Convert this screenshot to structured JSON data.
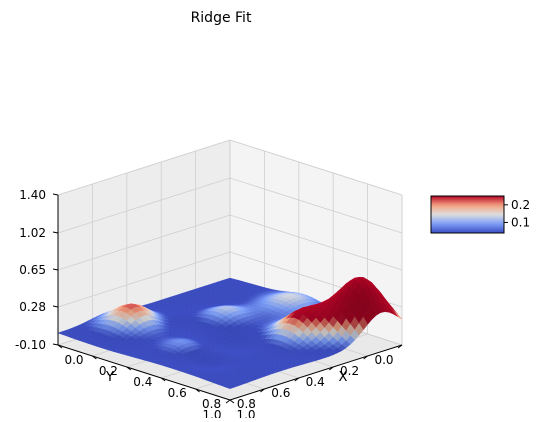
{
  "chart_data": {
    "type": "surface",
    "title": "Ridge Fit",
    "x_axis": {
      "label": "X",
      "range": [
        0,
        1
      ],
      "ticks": [
        "0.0",
        "0.2",
        "0.4",
        "0.6",
        "0.8",
        "1.0"
      ]
    },
    "y_axis": {
      "label": "Y",
      "range": [
        0,
        1
      ],
      "ticks": [
        "0.0",
        "0.2",
        "0.4",
        "0.6",
        "0.8",
        "1.0"
      ]
    },
    "z_axis": {
      "label": "",
      "range": [
        -0.1,
        1.4
      ],
      "ticks": [
        "-0.10",
        "0.28",
        "0.65",
        "1.02",
        "1.40"
      ]
    },
    "colorbar": {
      "colormap": "coolwarm",
      "range": [
        0.04,
        0.25
      ],
      "ticks": [
        "0.1",
        "0.2"
      ]
    },
    "surface": {
      "grid_size": 41,
      "baseline": 0.02,
      "bumps": [
        {
          "x": 0.88,
          "y": 0.12,
          "z": 0.55,
          "sigma": 0.1
        },
        {
          "x": 0.75,
          "y": 0.32,
          "z": 0.24,
          "sigma": 0.09
        },
        {
          "x": 0.15,
          "y": 0.72,
          "z": 0.2,
          "sigma": 0.09
        },
        {
          "x": 0.35,
          "y": 0.38,
          "z": 0.11,
          "sigma": 0.08
        },
        {
          "x": 0.5,
          "y": 0.78,
          "z": 0.07,
          "sigma": 0.07
        },
        {
          "x": 0.45,
          "y": 0.1,
          "z": 0.12,
          "sigma": 0.1
        }
      ],
      "dips": [
        {
          "x": 0.6,
          "y": 0.55,
          "z": 0.06,
          "sigma": 0.08
        },
        {
          "x": 0.28,
          "y": 0.6,
          "z": 0.05,
          "sigma": 0.07
        },
        {
          "x": 0.7,
          "y": 0.82,
          "z": 0.05,
          "sigma": 0.06
        }
      ]
    },
    "view": {
      "elevation": 30,
      "azimuth": 45
    },
    "grid": true,
    "colors": {
      "pane": "#f2f2f2",
      "pane_edge": "#dadada",
      "gridline": "#cfcfcf",
      "axis": "#000000"
    }
  }
}
